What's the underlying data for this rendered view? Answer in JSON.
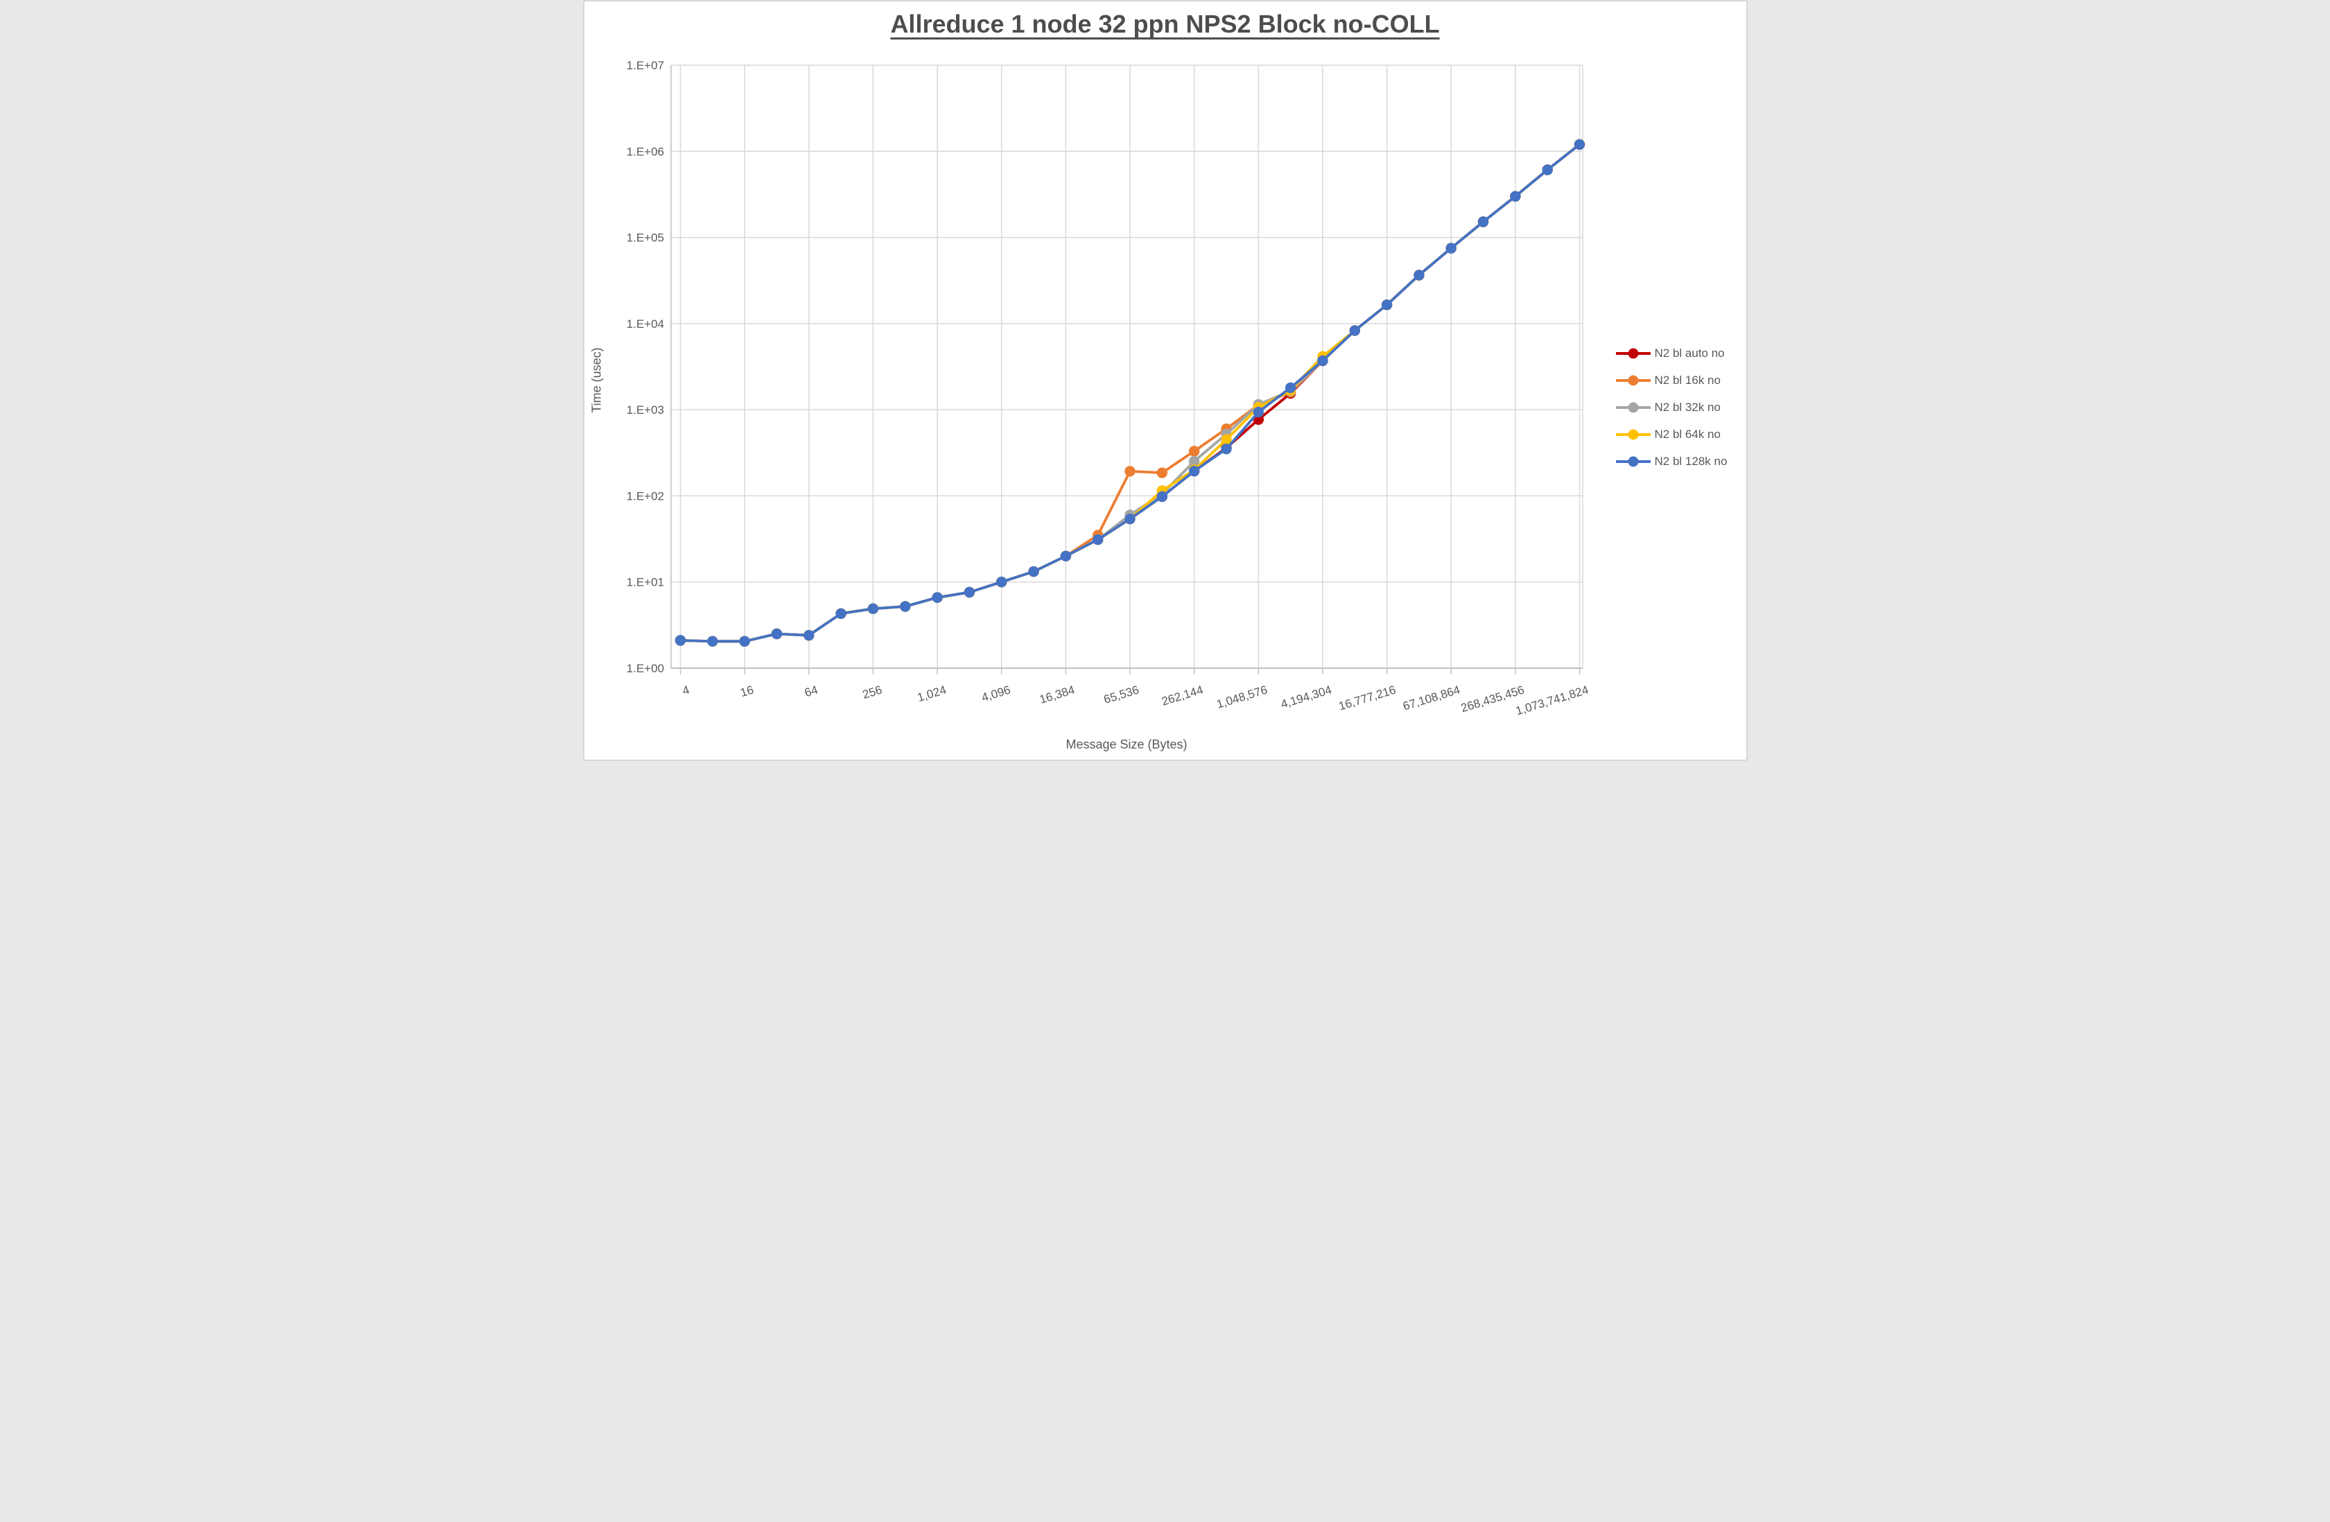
{
  "title": "Allreduce 1 node 32 ppn NPS2 Block no-COLL",
  "axes": {
    "x_title": "Message Size (Bytes)",
    "y_title": "Time (usec)"
  },
  "legend": {
    "position": "right",
    "items": [
      {
        "label": "N2 bl auto no",
        "color": "#C00000"
      },
      {
        "label": "N2 bl 16k no",
        "color": "#ED7D31"
      },
      {
        "label": "N2 bl 32k no",
        "color": "#A5A5A5"
      },
      {
        "label": "N2 bl 64k no",
        "color": "#FFC000"
      },
      {
        "label": "N2 bl 128k no",
        "color": "#4472C4"
      }
    ]
  },
  "style": {
    "gridline_color": "#d9d9d9",
    "axis_line_color": "#bfbfbf",
    "tick_text_color": "#595959",
    "title_color": "#4d4d4d",
    "marker_radius": 7.7,
    "line_width": 3.8
  },
  "chart_data": {
    "type": "line",
    "title": "Allreduce 1 node 32 ppn NPS2 Block no-COLL",
    "xlabel": "Message Size (Bytes)",
    "ylabel": "Time (usec)",
    "x_scale": "log2-category",
    "y_scale": "log10",
    "ylim": [
      1,
      10000000
    ],
    "grid": true,
    "legend_position": "right",
    "categories": [
      4,
      8,
      16,
      32,
      64,
      128,
      256,
      512,
      1024,
      2048,
      4096,
      8192,
      16384,
      32768,
      65536,
      131072,
      262144,
      524288,
      1048576,
      2097152,
      4194304,
      8388608,
      16777216,
      33554432,
      67108864,
      134217728,
      268435456,
      536870912,
      1073741824
    ],
    "x_tick_labels": [
      "4",
      "16",
      "64",
      "256",
      "1,024",
      "4,096",
      "16,384",
      "65,536",
      "262,144",
      "1,048,576",
      "4,194,304",
      "16,777,216",
      "67,108,864",
      "268,435,456",
      "1,073,741,824"
    ],
    "y_tick_labels": [
      "1.E+00",
      "1.E+01",
      "1.E+02",
      "1.E+03",
      "1.E+04",
      "1.E+05",
      "1.E+06",
      "1.E+07"
    ],
    "series": [
      {
        "name": "N2 bl auto no",
        "color": "#C00000",
        "values": [
          2.1,
          2.05,
          2.05,
          2.5,
          2.4,
          4.3,
          4.9,
          5.2,
          6.6,
          7.6,
          10,
          13.2,
          20,
          31,
          54,
          98,
          194,
          360,
          770,
          1550,
          3700,
          8300,
          16500,
          36500,
          75000,
          152000,
          300000,
          610000,
          1200000
        ]
      },
      {
        "name": "N2 bl 16k no",
        "color": "#ED7D31",
        "values": [
          2.1,
          2.05,
          2.05,
          2.5,
          2.4,
          4.3,
          4.9,
          5.2,
          6.6,
          7.6,
          10,
          13.2,
          20,
          35,
          193,
          185,
          330,
          600,
          1140,
          1600,
          3700,
          8300,
          16500,
          36500,
          75000,
          152000,
          300000,
          610000,
          1200000
        ]
      },
      {
        "name": "N2 bl 32k no",
        "color": "#A5A5A5",
        "values": [
          2.1,
          2.05,
          2.05,
          2.5,
          2.4,
          4.3,
          4.9,
          5.2,
          6.6,
          7.6,
          10,
          13.2,
          20,
          31,
          60,
          105,
          252,
          520,
          1150,
          1650,
          3700,
          8300,
          16500,
          36500,
          75000,
          152000,
          300000,
          610000,
          1200000
        ]
      },
      {
        "name": "N2 bl 64k no",
        "color": "#FFC000",
        "values": [
          2.1,
          2.05,
          2.05,
          2.5,
          2.4,
          4.3,
          4.9,
          5.2,
          6.6,
          7.6,
          10,
          13.2,
          20,
          31,
          54,
          115,
          200,
          450,
          1065,
          1680,
          4150,
          8300,
          16500,
          36500,
          75000,
          152000,
          300000,
          610000,
          1200000
        ]
      },
      {
        "name": "N2 bl 128k no",
        "color": "#4472C4",
        "values": [
          2.1,
          2.05,
          2.05,
          2.5,
          2.4,
          4.3,
          4.9,
          5.2,
          6.6,
          7.6,
          10,
          13.2,
          20,
          31,
          54,
          98,
          194,
          350,
          940,
          1800,
          3700,
          8300,
          16500,
          36500,
          75000,
          152000,
          300000,
          610000,
          1200000
        ]
      }
    ]
  }
}
